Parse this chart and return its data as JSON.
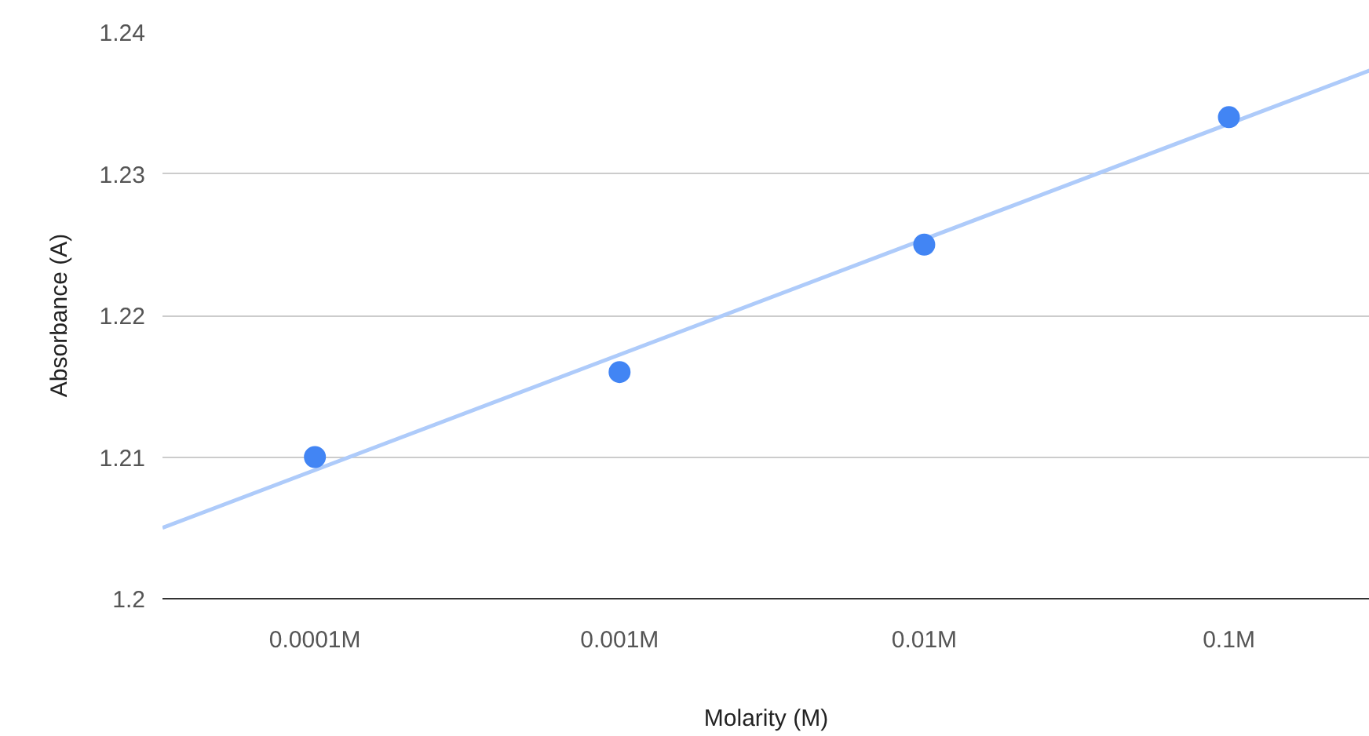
{
  "chart_data": {
    "type": "scatter",
    "xlabel": "Molarity (M)",
    "ylabel": "Absorbance (A)",
    "log": "x",
    "x": [
      0.0001,
      0.001,
      0.01,
      0.1
    ],
    "series": [
      {
        "color": "#4285f4",
        "marker": "circle",
        "values": [
          1.21,
          1.216,
          1.225,
          1.234
        ]
      },
      {
        "type": "line",
        "marker": "none",
        "color": "#aecbfa",
        "x": [
          3.16e-05,
          0.29
        ],
        "values": [
          1.205,
          1.2373
        ]
      }
    ],
    "xlim": [
      3.16e-05,
      0.29
    ],
    "ylim": [
      1.2,
      1.24
    ],
    "xticks": [
      {
        "value": 0.0001,
        "label": "0.0001M"
      },
      {
        "value": 0.001,
        "label": "0.001M"
      },
      {
        "value": 0.01,
        "label": "0.01M"
      },
      {
        "value": 0.1,
        "label": "0.1M"
      }
    ],
    "yticks": [
      1.2,
      1.21,
      1.22,
      1.23,
      1.24
    ],
    "grid": "y",
    "line_style": "solid"
  }
}
